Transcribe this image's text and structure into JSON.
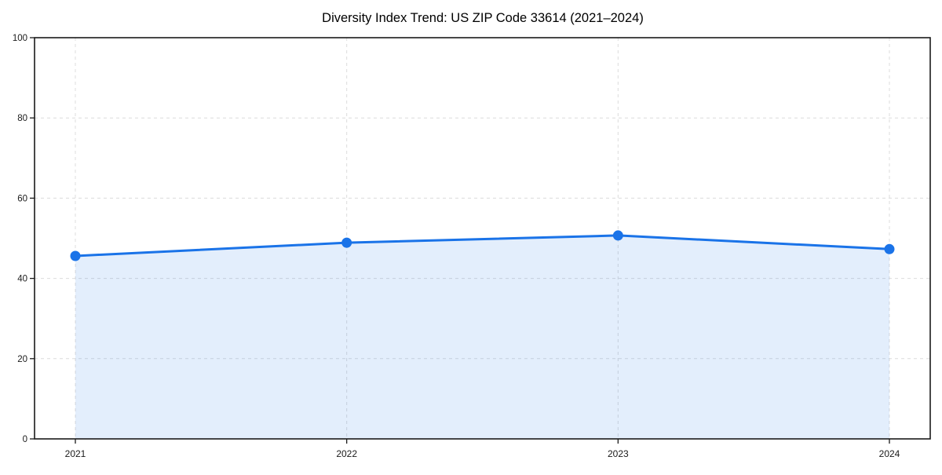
{
  "chart_data": {
    "type": "line",
    "title": "Diversity Index Trend: US ZIP Code 33614 (2021–2024)",
    "categories": [
      "2021",
      "2022",
      "2023",
      "2024"
    ],
    "values": [
      45.6,
      48.9,
      50.7,
      47.3
    ],
    "xlabel": "",
    "ylabel": "",
    "ylim": [
      0,
      100
    ],
    "yticks": [
      0,
      20,
      40,
      60,
      80,
      100
    ],
    "grid": true,
    "grid_style": "dashed",
    "legend": "none",
    "area_fill": true,
    "markers": true,
    "colors": {
      "line": "#1a73e8",
      "marker": "#1a73e8",
      "area": "rgba(26,115,232,0.12)",
      "grid": "#dcdcdc",
      "spine": "#1a1a1a",
      "tick_label": "#1a1a1a",
      "title": "#000000",
      "background": "#ffffff"
    }
  }
}
